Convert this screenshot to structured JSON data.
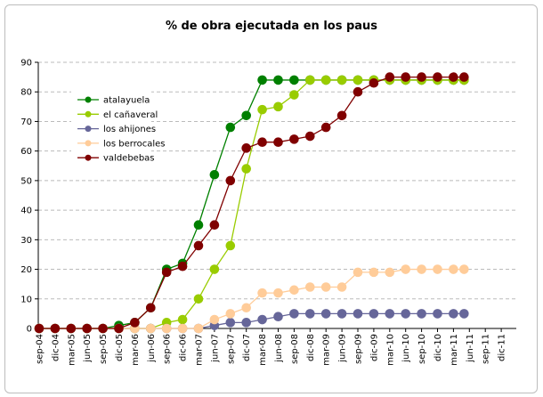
{
  "chart_data": {
    "type": "line",
    "title": "% de obra ejecutada en los paus",
    "xlabel": "",
    "ylabel": "",
    "ylim": [
      0,
      90
    ],
    "yticks": [
      0,
      10,
      20,
      30,
      40,
      50,
      60,
      70,
      80,
      90
    ],
    "xtick_labels": [
      "sep-04",
      "dic-04",
      "mar-05",
      "jun-05",
      "sep-05",
      "dic-05",
      "mar-06",
      "jun-06",
      "sep-06",
      "dic-06",
      "mar-07",
      "jun-07",
      "sep-07",
      "dic-07",
      "mar-08",
      "jun-08",
      "sep-08",
      "dic-08",
      "mar-09",
      "jun-09",
      "sep-09",
      "dic-09",
      "mar-10",
      "jun-10",
      "sep-10",
      "dic-10",
      "mar-11",
      "jun-11",
      "sep-11",
      "dic-11"
    ],
    "x": [
      "2004-09",
      "2004-12",
      "2005-03",
      "2005-06",
      "2005-09",
      "2005-12",
      "2006-03",
      "2006-06",
      "2006-09",
      "2006-12",
      "2007-03",
      "2007-06",
      "2007-09",
      "2007-12",
      "2008-03",
      "2008-06",
      "2008-09",
      "2008-12",
      "2009-03",
      "2009-06",
      "2009-09",
      "2009-12",
      "2010-03",
      "2010-06",
      "2010-09",
      "2010-12",
      "2011-03",
      "2011-05"
    ],
    "grid": "horizontal dashed",
    "legend_placement": "top-left inside",
    "series": [
      {
        "name": "atalayuela",
        "color": "#008000",
        "values": [
          0,
          0,
          0,
          0,
          0,
          1,
          2,
          7,
          20,
          22,
          35,
          52,
          68,
          72,
          84,
          84,
          84,
          84,
          84,
          84,
          84,
          84,
          84,
          84,
          84,
          84,
          84,
          84
        ]
      },
      {
        "name": "el cañaveral",
        "color": "#99cc00",
        "values": [
          0,
          0,
          0,
          0,
          0,
          0,
          0,
          0,
          2,
          3,
          10,
          20,
          28,
          54,
          74,
          75,
          79,
          84,
          84,
          84,
          84,
          84,
          84,
          84,
          84,
          84,
          84,
          84
        ]
      },
      {
        "name": "los ahijones",
        "color": "#666699",
        "values": [
          0,
          0,
          0,
          0,
          0,
          0,
          0,
          0,
          0,
          0,
          0,
          1,
          2,
          2,
          3,
          4,
          5,
          5,
          5,
          5,
          5,
          5,
          5,
          5,
          5,
          5,
          5,
          5
        ]
      },
      {
        "name": "los berrocales",
        "color": "#ffcc99",
        "values": [
          0,
          0,
          0,
          0,
          0,
          0,
          0,
          0,
          0,
          0,
          0,
          3,
          5,
          7,
          12,
          12,
          13,
          14,
          14,
          14,
          19,
          19,
          19,
          20,
          20,
          20,
          20,
          20
        ]
      },
      {
        "name": "valdebebas",
        "color": "#800000",
        "values": [
          0,
          0,
          0,
          0,
          0,
          0,
          2,
          7,
          19,
          21,
          28,
          35,
          50,
          61,
          63,
          63,
          64,
          65,
          68,
          72,
          80,
          83,
          85,
          85,
          85,
          85,
          85,
          85
        ]
      }
    ]
  }
}
